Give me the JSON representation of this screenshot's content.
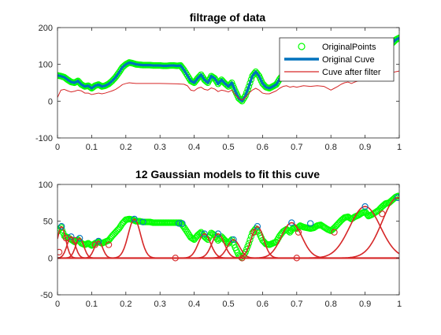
{
  "figure_bg": "#ffffff",
  "chart_data": [
    {
      "type": "line",
      "title": "filtrage of data",
      "xlabel": "",
      "ylabel": "",
      "xlim": [
        0,
        1
      ],
      "ylim": [
        -100,
        200
      ],
      "xticks": [
        0,
        0.1,
        0.2,
        0.3,
        0.4,
        0.5,
        0.6,
        0.7,
        0.8,
        0.9,
        1
      ],
      "xtick_labels": [
        "0",
        "0.1",
        "0.2",
        "0.3",
        "0.4",
        "0.5",
        "0.6",
        "0.7",
        "0.8",
        "0.9",
        "1"
      ],
      "yticks": [
        -100,
        0,
        100,
        200
      ],
      "ytick_labels": [
        "-100",
        "0",
        "100",
        "200"
      ],
      "grid": false,
      "legend_location": "top-right",
      "series": [
        {
          "name": "OriginalPoints",
          "style": "markers-circle",
          "color": "#00ff00",
          "x": [
            0,
            0.01,
            0.02,
            0.03,
            0.04,
            0.05,
            0.06,
            0.07,
            0.08,
            0.09,
            0.1,
            0.11,
            0.12,
            0.13,
            0.14,
            0.15,
            0.16,
            0.17,
            0.18,
            0.19,
            0.2,
            0.21,
            0.22,
            0.23,
            0.24,
            0.25,
            0.26,
            0.27,
            0.28,
            0.29,
            0.3,
            0.31,
            0.32,
            0.33,
            0.34,
            0.35,
            0.36,
            0.37,
            0.38,
            0.39,
            0.4,
            0.41,
            0.42,
            0.43,
            0.44,
            0.45,
            0.46,
            0.47,
            0.48,
            0.49,
            0.5,
            0.51,
            0.52,
            0.53,
            0.54,
            0.55,
            0.56,
            0.57,
            0.58,
            0.59,
            0.6,
            0.61,
            0.62,
            0.63,
            0.64,
            0.65,
            0.66,
            0.67,
            0.68,
            0.69,
            0.7,
            0.71,
            0.72,
            0.73,
            0.74,
            0.75,
            0.76,
            0.77,
            0.78,
            0.79,
            0.8,
            0.81,
            0.82,
            0.83,
            0.84,
            0.85,
            0.86,
            0.87,
            0.88,
            0.89,
            0.9,
            0.91,
            0.92,
            0.93,
            0.94,
            0.95,
            0.96,
            0.97,
            0.98,
            0.99,
            1.0
          ],
          "y": [
            70,
            68,
            65,
            58,
            52,
            50,
            55,
            45,
            40,
            42,
            35,
            42,
            45,
            40,
            42,
            47,
            55,
            65,
            78,
            92,
            100,
            105,
            103,
            100,
            99,
            98,
            98,
            98,
            97,
            97,
            97,
            96,
            96,
            97,
            97,
            96,
            97,
            85,
            70,
            55,
            50,
            62,
            72,
            58,
            50,
            68,
            62,
            47,
            58,
            48,
            40,
            50,
            28,
            8,
            0,
            15,
            40,
            68,
            80,
            68,
            48,
            38,
            35,
            40,
            45,
            60,
            72,
            78,
            70,
            82,
            80,
            88,
            85,
            82,
            80,
            82,
            88,
            90,
            85,
            78,
            75,
            83,
            92,
            102,
            110,
            112,
            106,
            112,
            116,
            123,
            126,
            114,
            118,
            125,
            130,
            140,
            148,
            150,
            158,
            167,
            172
          ]
        },
        {
          "name": "Original Cuve",
          "style": "line",
          "color": "#0072bd",
          "x": [
            0,
            0.01,
            0.02,
            0.03,
            0.04,
            0.05,
            0.06,
            0.07,
            0.08,
            0.09,
            0.1,
            0.11,
            0.12,
            0.13,
            0.14,
            0.15,
            0.16,
            0.17,
            0.18,
            0.19,
            0.2,
            0.21,
            0.22,
            0.23,
            0.24,
            0.25,
            0.26,
            0.27,
            0.28,
            0.29,
            0.3,
            0.31,
            0.32,
            0.33,
            0.34,
            0.35,
            0.36,
            0.37,
            0.38,
            0.39,
            0.4,
            0.41,
            0.42,
            0.43,
            0.44,
            0.45,
            0.46,
            0.47,
            0.48,
            0.49,
            0.5,
            0.51,
            0.52,
            0.53,
            0.54,
            0.55,
            0.56,
            0.57,
            0.58,
            0.59,
            0.6,
            0.61,
            0.62,
            0.63,
            0.64,
            0.65,
            0.66,
            0.67,
            0.68,
            0.69,
            0.7,
            0.71,
            0.72,
            0.73,
            0.74,
            0.75,
            0.76,
            0.77,
            0.78,
            0.79,
            0.8,
            0.81,
            0.82,
            0.83,
            0.84,
            0.85,
            0.86,
            0.87,
            0.88,
            0.89,
            0.9,
            0.91,
            0.92,
            0.93,
            0.94,
            0.95,
            0.96,
            0.97,
            0.98,
            0.99,
            1.0
          ],
          "y": [
            70,
            68,
            65,
            58,
            52,
            50,
            55,
            45,
            40,
            42,
            35,
            42,
            45,
            40,
            42,
            47,
            55,
            65,
            78,
            92,
            100,
            105,
            103,
            100,
            99,
            98,
            98,
            98,
            97,
            97,
            97,
            96,
            96,
            97,
            97,
            96,
            97,
            85,
            70,
            55,
            50,
            62,
            72,
            58,
            50,
            68,
            62,
            47,
            58,
            48,
            40,
            50,
            28,
            8,
            0,
            15,
            40,
            68,
            80,
            68,
            48,
            38,
            35,
            40,
            45,
            60,
            72,
            78,
            70,
            82,
            80,
            88,
            85,
            82,
            80,
            82,
            88,
            90,
            85,
            78,
            75,
            83,
            92,
            102,
            110,
            112,
            106,
            112,
            116,
            123,
            126,
            114,
            118,
            125,
            130,
            140,
            148,
            150,
            158,
            167,
            172
          ]
        },
        {
          "name": "Cuve after filter",
          "style": "line",
          "color": "#d62728",
          "x": [
            0,
            0.01,
            0.02,
            0.03,
            0.04,
            0.05,
            0.06,
            0.07,
            0.08,
            0.09,
            0.1,
            0.11,
            0.12,
            0.13,
            0.14,
            0.15,
            0.16,
            0.17,
            0.18,
            0.19,
            0.2,
            0.21,
            0.22,
            0.23,
            0.24,
            0.25,
            0.3,
            0.35,
            0.37,
            0.38,
            0.39,
            0.4,
            0.41,
            0.42,
            0.43,
            0.44,
            0.45,
            0.46,
            0.47,
            0.48,
            0.49,
            0.5,
            0.51,
            0.52,
            0.53,
            0.54,
            0.55,
            0.56,
            0.57,
            0.58,
            0.59,
            0.6,
            0.61,
            0.62,
            0.63,
            0.64,
            0.65,
            0.66,
            0.67,
            0.68,
            0.69,
            0.7,
            0.72,
            0.74,
            0.76,
            0.78,
            0.8,
            0.81,
            0.82,
            0.83,
            0.84,
            0.85,
            0.86,
            0.87,
            0.88,
            0.89,
            0.9,
            0.91,
            0.92,
            0.93,
            0.94,
            0.95,
            0.96,
            0.97,
            0.98,
            0.99,
            1.0
          ],
          "y": [
            10,
            30,
            32,
            28,
            25,
            27,
            30,
            28,
            22,
            22,
            18,
            20,
            22,
            20,
            22,
            25,
            28,
            32,
            38,
            45,
            48,
            50,
            49,
            48,
            48,
            48,
            48,
            47,
            46,
            42,
            30,
            28,
            35,
            38,
            32,
            30,
            36,
            33,
            26,
            30,
            28,
            25,
            30,
            18,
            8,
            3,
            10,
            22,
            30,
            35,
            30,
            22,
            20,
            20,
            24,
            28,
            35,
            40,
            42,
            38,
            40,
            38,
            42,
            40,
            42,
            40,
            30,
            35,
            40,
            46,
            50,
            52,
            48,
            52,
            55,
            58,
            60,
            55,
            58,
            62,
            66,
            70,
            72,
            74,
            78,
            80,
            82
          ]
        }
      ]
    },
    {
      "type": "line",
      "title": "12 Gaussian models to fit this cuve",
      "xlabel": "",
      "ylabel": "",
      "xlim": [
        0,
        1
      ],
      "ylim": [
        -50,
        100
      ],
      "xticks": [
        0,
        0.1,
        0.2,
        0.3,
        0.4,
        0.5,
        0.6,
        0.7,
        0.8,
        0.9,
        1
      ],
      "xtick_labels": [
        "0",
        "0.1",
        "0.2",
        "0.3",
        "0.4",
        "0.5",
        "0.6",
        "0.7",
        "0.8",
        "0.9",
        "1"
      ],
      "yticks": [
        -50,
        0,
        50,
        100
      ],
      "ytick_labels": [
        "-50",
        "0",
        "50",
        "100"
      ],
      "grid": false,
      "legend_location": "none",
      "data_series": {
        "color": "#00ff00",
        "x": [
          0,
          0.01,
          0.02,
          0.03,
          0.04,
          0.05,
          0.06,
          0.07,
          0.08,
          0.09,
          0.1,
          0.11,
          0.12,
          0.13,
          0.14,
          0.15,
          0.16,
          0.17,
          0.18,
          0.19,
          0.2,
          0.21,
          0.22,
          0.23,
          0.24,
          0.25,
          0.26,
          0.27,
          0.28,
          0.29,
          0.3,
          0.31,
          0.32,
          0.33,
          0.34,
          0.35,
          0.36,
          0.37,
          0.38,
          0.39,
          0.4,
          0.41,
          0.42,
          0.43,
          0.44,
          0.45,
          0.46,
          0.47,
          0.48,
          0.49,
          0.5,
          0.51,
          0.52,
          0.53,
          0.54,
          0.55,
          0.56,
          0.57,
          0.58,
          0.59,
          0.6,
          0.61,
          0.62,
          0.63,
          0.64,
          0.65,
          0.66,
          0.67,
          0.68,
          0.69,
          0.7,
          0.71,
          0.72,
          0.73,
          0.74,
          0.75,
          0.76,
          0.77,
          0.78,
          0.79,
          0.8,
          0.81,
          0.82,
          0.83,
          0.84,
          0.85,
          0.86,
          0.87,
          0.88,
          0.89,
          0.9,
          0.91,
          0.92,
          0.93,
          0.94,
          0.95,
          0.96,
          0.97,
          0.98,
          0.99,
          1.0
        ],
        "y": [
          36,
          42,
          30,
          28,
          25,
          22,
          25,
          20,
          18,
          20,
          17,
          20,
          22,
          20,
          22,
          24,
          30,
          35,
          40,
          47,
          52,
          53,
          52,
          50,
          50,
          49,
          49,
          49,
          48,
          48,
          48,
          48,
          48,
          48,
          48,
          48,
          48,
          42,
          35,
          28,
          25,
          31,
          35,
          29,
          25,
          34,
          31,
          24,
          29,
          24,
          20,
          25,
          14,
          4,
          0,
          8,
          20,
          34,
          40,
          34,
          24,
          19,
          18,
          20,
          22,
          30,
          36,
          39,
          35,
          41,
          40,
          44,
          42,
          41,
          40,
          41,
          44,
          45,
          42,
          39,
          37,
          41,
          46,
          51,
          55,
          56,
          53,
          56,
          58,
          61,
          63,
          57,
          59,
          62,
          65,
          70,
          74,
          75,
          79,
          83,
          85
        ]
      },
      "component_peaks": [
        {
          "center": 0.012,
          "amplitude": 43
        },
        {
          "center": 0.04,
          "amplitude": 29
        },
        {
          "center": 0.065,
          "amplitude": 27
        },
        {
          "center": 0.12,
          "amplitude": 23
        },
        {
          "center": 0.225,
          "amplitude": 53
        },
        {
          "center": 0.43,
          "amplitude": 33
        },
        {
          "center": 0.47,
          "amplitude": 33
        },
        {
          "center": 0.515,
          "amplitude": 25
        },
        {
          "center": 0.585,
          "amplitude": 43
        },
        {
          "center": 0.685,
          "amplitude": 48
        },
        {
          "center": 0.9,
          "amplitude": 70
        },
        {
          "center": 0.995,
          "amplitude": 82
        }
      ],
      "blue_markers": [
        {
          "x": 0.012,
          "y": 43
        },
        {
          "x": 0.04,
          "y": 29
        },
        {
          "x": 0.065,
          "y": 27
        },
        {
          "x": 0.12,
          "y": 23
        },
        {
          "x": 0.225,
          "y": 53
        },
        {
          "x": 0.25,
          "y": 49
        },
        {
          "x": 0.355,
          "y": 47
        },
        {
          "x": 0.365,
          "y": 47
        },
        {
          "x": 0.43,
          "y": 33
        },
        {
          "x": 0.47,
          "y": 33
        },
        {
          "x": 0.515,
          "y": 25
        },
        {
          "x": 0.585,
          "y": 43
        },
        {
          "x": 0.685,
          "y": 48
        },
        {
          "x": 0.74,
          "y": 47
        },
        {
          "x": 0.9,
          "y": 70
        },
        {
          "x": 0.995,
          "y": 82
        }
      ],
      "red_markers": [
        {
          "x": 0.005,
          "y": 8
        },
        {
          "x": 0.025,
          "y": 27
        },
        {
          "x": 0.05,
          "y": 24
        },
        {
          "x": 0.11,
          "y": 18
        },
        {
          "x": 0.15,
          "y": 18
        },
        {
          "x": 0.345,
          "y": 0
        },
        {
          "x": 0.54,
          "y": 0
        },
        {
          "x": 0.575,
          "y": 35
        },
        {
          "x": 0.7,
          "y": 0
        },
        {
          "x": 0.705,
          "y": 35
        },
        {
          "x": 0.81,
          "y": 35
        },
        {
          "x": 0.95,
          "y": 60
        }
      ]
    }
  ]
}
